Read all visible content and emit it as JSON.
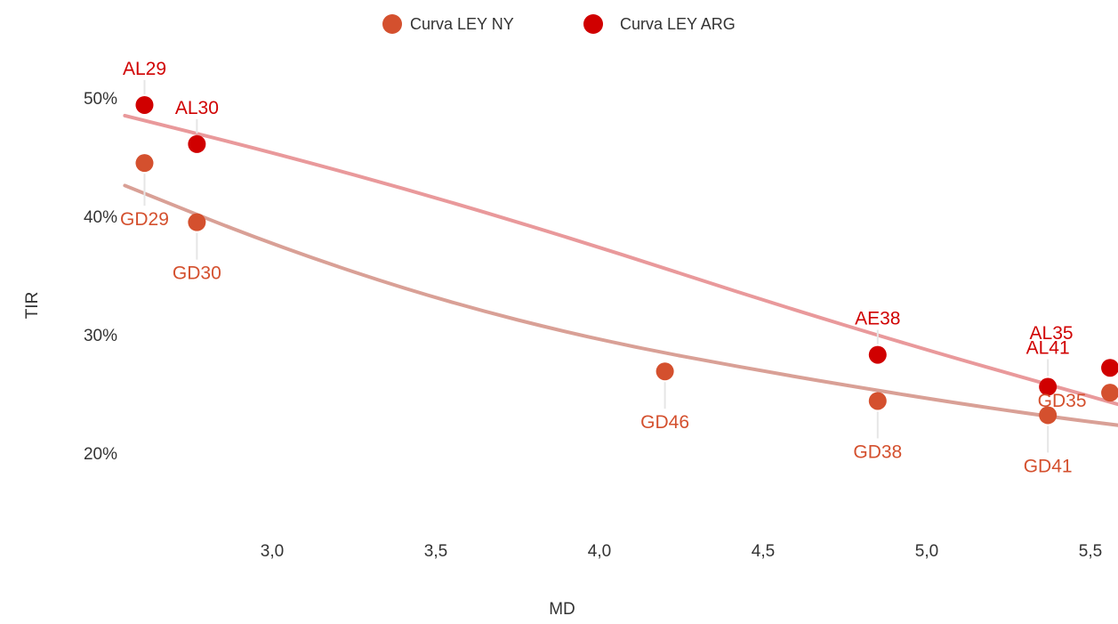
{
  "chart_data": {
    "type": "scatter",
    "xlabel": "MD",
    "ylabel": "TIR",
    "x_ticks": [
      "3,0",
      "3,5",
      "4,0",
      "4,5",
      "5,0",
      "5,5"
    ],
    "x_tick_values": [
      3.0,
      3.5,
      4.0,
      4.5,
      5.0,
      5.5
    ],
    "y_ticks": [
      "20%",
      "30%",
      "40%",
      "50%"
    ],
    "y_tick_values": [
      20,
      30,
      40,
      50
    ],
    "xlim": [
      2.55,
      5.6
    ],
    "ylim": [
      11,
      55
    ],
    "grid": false,
    "legend_position": "top-center",
    "series": [
      {
        "name": "Curva LEY NY",
        "color": "#d4502e",
        "trend_color": "#d9a096",
        "points": [
          {
            "label": "GD29",
            "x": 2.61,
            "y": 44.5
          },
          {
            "label": "GD30",
            "x": 2.77,
            "y": 39.5
          },
          {
            "label": "GD46",
            "x": 4.2,
            "y": 26.9
          },
          {
            "label": "GD38",
            "x": 4.85,
            "y": 24.4
          },
          {
            "label": "GD35",
            "x": 5.56,
            "y": 25.1
          },
          {
            "label": "GD41",
            "x": 5.37,
            "y": 23.2
          }
        ],
        "trendline": [
          [
            2.55,
            42.6
          ],
          [
            3.0,
            37.6
          ],
          [
            3.5,
            33.0
          ],
          [
            4.0,
            29.5
          ],
          [
            4.5,
            26.9
          ],
          [
            5.0,
            24.6
          ],
          [
            5.37,
            23.1
          ],
          [
            5.6,
            22.3
          ]
        ]
      },
      {
        "name": "Curva LEY ARG",
        "color": "#d00000",
        "trend_color": "#e9999b",
        "points": [
          {
            "label": "AL29",
            "x": 2.61,
            "y": 49.4
          },
          {
            "label": "AL30",
            "x": 2.77,
            "y": 46.1
          },
          {
            "label": "AE38",
            "x": 4.85,
            "y": 28.3
          },
          {
            "label": "AL35",
            "x": 5.56,
            "y": 27.2
          },
          {
            "label": "AL41",
            "x": 5.37,
            "y": 25.6
          }
        ],
        "trendline": [
          [
            2.55,
            48.5
          ],
          [
            3.0,
            45.4
          ],
          [
            3.5,
            41.6
          ],
          [
            4.0,
            37.4
          ],
          [
            4.5,
            32.9
          ],
          [
            5.0,
            28.7
          ],
          [
            5.37,
            25.8
          ],
          [
            5.6,
            24.0
          ]
        ]
      }
    ]
  }
}
